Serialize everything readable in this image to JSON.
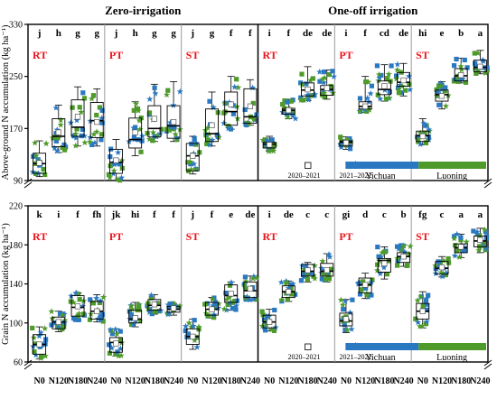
{
  "figure": {
    "headers": [
      "Zero-irrigation",
      "One-off irrigation"
    ],
    "tillage": [
      "RT",
      "PT",
      "ST"
    ],
    "legend": {
      "years": [
        {
          "label": "2020–2021",
          "marker": "square"
        },
        {
          "label": "2021–2022",
          "marker": "star"
        }
      ],
      "sites": [
        {
          "label": "Yichuan",
          "color": "#2a78c2"
        },
        {
          "label": "Luoning",
          "color": "#4e9a2a"
        }
      ]
    },
    "colors": {
      "blue": "#2a78c2",
      "green": "#4e9a2a",
      "tillage_label": "#e8141c"
    }
  },
  "chart_data": [
    {
      "type": "box",
      "ylabel": "Above-ground N accumulation (kg ha⁻¹)",
      "ylim": [
        90,
        330
      ],
      "yticks": [
        90,
        170,
        250,
        330
      ],
      "categories": [
        "N0",
        "N120",
        "N180",
        "N240"
      ],
      "groups": [
        {
          "irrigation": "Zero-irrigation",
          "tillage": "RT",
          "letters": [
            "j",
            "h",
            "g",
            "g"
          ],
          "boxes": [
            [
              96,
              101,
              116,
              132,
              151
            ],
            [
              133,
              142,
              158,
              185,
              206
            ],
            [
              143,
              158,
              172,
              214,
              234
            ],
            [
              143,
              156,
              182,
              210,
              231
            ]
          ],
          "means": [
            117,
            164,
            188,
            180
          ]
        },
        {
          "irrigation": "Zero-irrigation",
          "tillage": "PT",
          "letters": [
            "j",
            "h",
            "g",
            "g"
          ],
          "boxes": [
            [
              90,
              101,
              118,
              138,
              153
            ],
            [
              128,
              140,
              153,
              186,
              211
            ],
            [
              150,
              157,
              170,
              205,
              238
            ],
            [
              150,
              155,
              174,
              205,
              242
            ]
          ],
          "means": [
            121,
            164,
            185,
            180
          ]
        },
        {
          "irrigation": "Zero-irrigation",
          "tillage": "ST",
          "letters": [
            "j",
            "g",
            "f",
            "f"
          ],
          "boxes": [
            [
              100,
              105,
              128,
              147,
              158
            ],
            [
              143,
              150,
              162,
              200,
              226
            ],
            [
              169,
              175,
              196,
              226,
              250
            ],
            [
              175,
              178,
              188,
              231,
              245
            ]
          ],
          "means": [
            128,
            175,
            207,
            204
          ]
        },
        {
          "irrigation": "One-off irrigation",
          "tillage": "RT",
          "letters": [
            "i",
            "f",
            "de",
            "de"
          ],
          "boxes": [
            [
              135,
              140,
              146,
              149,
              158
            ],
            [
              185,
              192,
              198,
              201,
              215
            ],
            [
              213,
              220,
              229,
              240,
              265
            ],
            [
              215,
              221,
              230,
              236,
              260
            ]
          ],
          "means": [
            145,
            198,
            230,
            232
          ]
        },
        {
          "irrigation": "One-off irrigation",
          "tillage": "PT",
          "letters": [
            "i",
            "f",
            "cd",
            "de"
          ],
          "boxes": [
            [
              138,
              143,
              149,
              151,
              157
            ],
            [
              195,
              200,
              204,
              211,
              250
            ],
            [
              212,
              222,
              230,
              243,
              268
            ],
            [
              220,
              235,
              241,
              256,
              270
            ]
          ],
          "means": [
            148,
            204,
            235,
            244
          ]
        },
        {
          "irrigation": "One-off irrigation",
          "tillage": "ST",
          "letters": [
            "hi",
            "e",
            "b",
            "a"
          ],
          "boxes": [
            [
              145,
              150,
              159,
              166,
              185
            ],
            [
              200,
              212,
              222,
              229,
              242
            ],
            [
              240,
              243,
              251,
              262,
              278
            ],
            [
              254,
              257,
              264,
              275,
              290
            ]
          ],
          "means": [
            158,
            220,
            252,
            265
          ]
        }
      ]
    },
    {
      "type": "box",
      "ylabel": "Grain N accumulation (kg ha⁻¹)",
      "ylim": [
        60,
        220
      ],
      "yticks": [
        60,
        100,
        140,
        180,
        220
      ],
      "categories": [
        "N0",
        "N120",
        "N180",
        "N240"
      ],
      "groups": [
        {
          "irrigation": "Zero-irrigation",
          "tillage": "RT",
          "letters": [
            "k",
            "i",
            "f",
            "fh"
          ],
          "boxes": [
            [
              63,
              68,
              78,
              88,
              96
            ],
            [
              91,
              94,
              101,
              106,
              112
            ],
            [
              103,
              107,
              116,
              128,
              131
            ],
            [
              101,
              104,
              112,
              122,
              129
            ]
          ],
          "means": [
            78,
            101,
            117,
            112
          ]
        },
        {
          "irrigation": "Zero-irrigation",
          "tillage": "PT",
          "letters": [
            "jk",
            "hi",
            "f",
            "f"
          ],
          "boxes": [
            [
              66,
              70,
              80,
              85,
              94
            ],
            [
              96,
              100,
              104,
              113,
              121
            ],
            [
              109,
              113,
              118,
              124,
              129
            ],
            [
              108,
              111,
              114,
              117,
              120
            ]
          ],
          "means": [
            79,
            105,
            119,
            115
          ]
        },
        {
          "irrigation": "Zero-irrigation",
          "tillage": "ST",
          "letters": [
            "j",
            "f",
            "e",
            "de"
          ],
          "boxes": [
            [
              73,
              78,
              86,
              94,
              104
            ],
            [
              105,
              108,
              114,
              121,
              126
            ],
            [
              113,
              121,
              128,
              139,
              142
            ],
            [
              123,
              126,
              133,
              142,
              148
            ]
          ],
          "means": [
            86,
            114,
            130,
            135
          ]
        },
        {
          "irrigation": "One-off irrigation",
          "tillage": "RT",
          "letters": [
            "i",
            "de",
            "c",
            "c"
          ],
          "boxes": [
            [
              92,
              95,
              101,
              108,
              114
            ],
            [
              122,
              126,
              132,
              138,
              143
            ],
            [
              142,
              148,
              153,
              160,
              162
            ],
            [
              142,
              148,
              153,
              161,
              171
            ]
          ],
          "means": [
            101,
            132,
            154,
            154
          ]
        },
        {
          "irrigation": "One-off irrigation",
          "tillage": "PT",
          "letters": [
            "gi",
            "d",
            "c",
            "b"
          ],
          "boxes": [
            [
              90,
              97,
              102,
              110,
              124
            ],
            [
              125,
              131,
              139,
              146,
              151
            ],
            [
              145,
              152,
              164,
              166,
              178
            ],
            [
              158,
              162,
              168,
              172,
              180
            ]
          ],
          "means": [
            104,
            139,
            161,
            168
          ]
        },
        {
          "irrigation": "One-off irrigation",
          "tillage": "ST",
          "letters": [
            "fg",
            "c",
            "a",
            "a"
          ],
          "boxes": [
            [
              95,
              104,
              112,
              120,
              132
            ],
            [
              147,
              150,
              156,
              163,
              168
            ],
            [
              167,
              172,
              177,
              181,
              191
            ],
            [
              172,
              178,
              184,
              189,
              197
            ]
          ],
          "means": [
            112,
            157,
            178,
            185
          ]
        }
      ]
    }
  ]
}
